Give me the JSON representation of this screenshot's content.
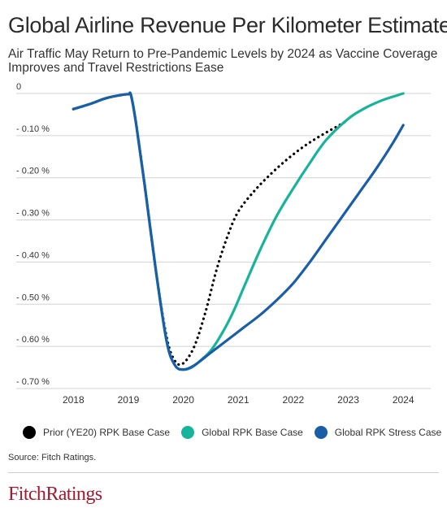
{
  "header": {
    "title": "Global Airline Revenue Per Kilometer Estimates",
    "subtitle": "Air Traffic May Return to Pre-Pandemic Levels by 2024 as Vaccine Coverage Improves and Travel Restrictions Ease"
  },
  "chart_data": {
    "type": "line",
    "title": "Global Airline Revenue Per Kilometer Estimates",
    "subtitle": "Air Traffic May Return to Pre-Pandemic Levels by 2024 as Vaccine Coverage Improves and Travel Restrictions Ease",
    "xlabel": "",
    "ylabel": "",
    "x_ticks": [
      "2018",
      "2019",
      "2020",
      "2021",
      "2022",
      "2023",
      "2024"
    ],
    "y_ticks": [
      "0",
      "- 0.10 %",
      "- 0.20 %",
      "- 0.30 %",
      "- 0.40 %",
      "- 0.50 %",
      "- 0.60 %",
      "- 0.70 %"
    ],
    "xlim": [
      2017.7,
      2024.5
    ],
    "ylim": [
      -0.7,
      0
    ],
    "grid": true,
    "legend_position": "bottom",
    "series": [
      {
        "name": "Prior (YE20) RPK Base Case",
        "color": "#000000",
        "style": "dotted",
        "points": [
          [
            2018.0,
            -0.037
          ],
          [
            2018.3,
            -0.025
          ],
          [
            2018.6,
            -0.011
          ],
          [
            2018.9,
            -0.003
          ],
          [
            2019.0,
            -0.002
          ],
          [
            2019.05,
            -0.005
          ],
          [
            2019.15,
            -0.08
          ],
          [
            2019.3,
            -0.22
          ],
          [
            2019.5,
            -0.42
          ],
          [
            2019.7,
            -0.58
          ],
          [
            2019.85,
            -0.635
          ],
          [
            2020.0,
            -0.64
          ],
          [
            2020.2,
            -0.6
          ],
          [
            2020.4,
            -0.52
          ],
          [
            2020.6,
            -0.42
          ],
          [
            2020.8,
            -0.34
          ],
          [
            2021.0,
            -0.28
          ],
          [
            2021.3,
            -0.23
          ],
          [
            2021.6,
            -0.19
          ],
          [
            2021.9,
            -0.155
          ],
          [
            2022.2,
            -0.125
          ],
          [
            2022.5,
            -0.1
          ],
          [
            2022.8,
            -0.078
          ],
          [
            2023.0,
            -0.063
          ]
        ]
      },
      {
        "name": "Global RPK Base Case",
        "color": "#17b39a",
        "style": "solid",
        "points": [
          [
            2018.0,
            -0.037
          ],
          [
            2018.3,
            -0.025
          ],
          [
            2018.6,
            -0.011
          ],
          [
            2018.9,
            -0.003
          ],
          [
            2019.0,
            -0.002
          ],
          [
            2019.05,
            -0.005
          ],
          [
            2019.15,
            -0.08
          ],
          [
            2019.3,
            -0.22
          ],
          [
            2019.5,
            -0.42
          ],
          [
            2019.7,
            -0.59
          ],
          [
            2019.85,
            -0.645
          ],
          [
            2020.0,
            -0.655
          ],
          [
            2020.15,
            -0.65
          ],
          [
            2020.3,
            -0.635
          ],
          [
            2020.5,
            -0.61
          ],
          [
            2020.7,
            -0.57
          ],
          [
            2020.9,
            -0.52
          ],
          [
            2021.1,
            -0.46
          ],
          [
            2021.4,
            -0.37
          ],
          [
            2021.7,
            -0.29
          ],
          [
            2022.0,
            -0.225
          ],
          [
            2022.3,
            -0.165
          ],
          [
            2022.6,
            -0.11
          ],
          [
            2023.0,
            -0.06
          ],
          [
            2023.3,
            -0.035
          ],
          [
            2023.6,
            -0.017
          ],
          [
            2023.9,
            -0.004
          ],
          [
            2024.0,
            0.0
          ]
        ]
      },
      {
        "name": "Global RPK Stress Case",
        "color": "#1a5ea8",
        "style": "solid",
        "points": [
          [
            2018.0,
            -0.037
          ],
          [
            2018.3,
            -0.025
          ],
          [
            2018.6,
            -0.011
          ],
          [
            2018.9,
            -0.003
          ],
          [
            2019.0,
            -0.002
          ],
          [
            2019.05,
            -0.005
          ],
          [
            2019.15,
            -0.08
          ],
          [
            2019.3,
            -0.22
          ],
          [
            2019.5,
            -0.42
          ],
          [
            2019.7,
            -0.59
          ],
          [
            2019.85,
            -0.645
          ],
          [
            2020.0,
            -0.655
          ],
          [
            2020.2,
            -0.645
          ],
          [
            2020.5,
            -0.615
          ],
          [
            2020.8,
            -0.585
          ],
          [
            2021.1,
            -0.555
          ],
          [
            2021.4,
            -0.525
          ],
          [
            2021.7,
            -0.49
          ],
          [
            2022.0,
            -0.45
          ],
          [
            2022.3,
            -0.4
          ],
          [
            2022.6,
            -0.345
          ],
          [
            2022.9,
            -0.29
          ],
          [
            2023.2,
            -0.235
          ],
          [
            2023.5,
            -0.18
          ],
          [
            2023.8,
            -0.12
          ],
          [
            2024.0,
            -0.075
          ]
        ]
      }
    ]
  },
  "source": "Source: Fitch Ratings.",
  "branding": {
    "logo": "FitchRatings"
  }
}
